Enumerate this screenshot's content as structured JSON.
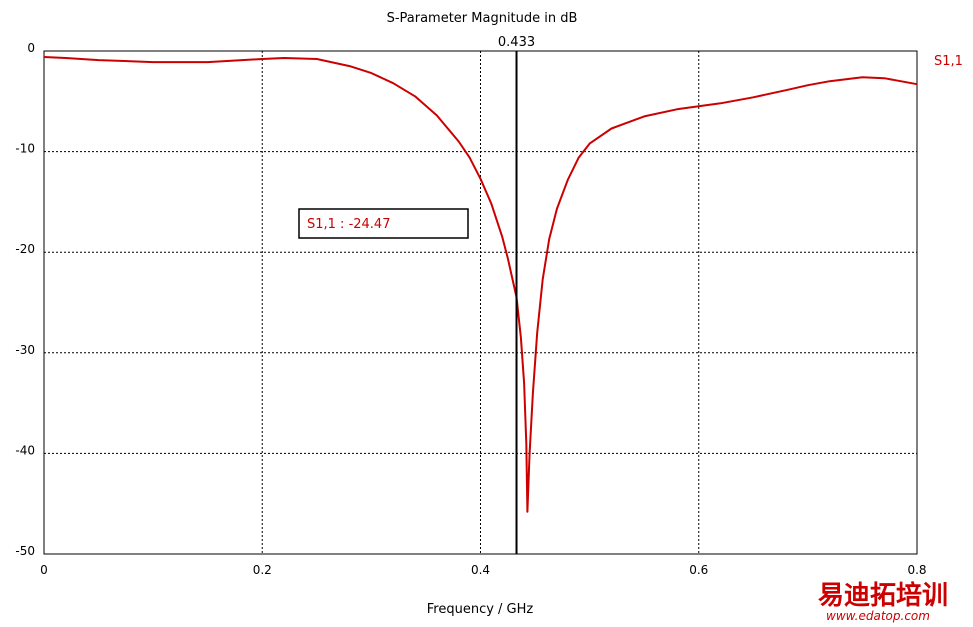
{
  "chart_data": {
    "type": "line",
    "title": "S-Parameter Magnitude in dB",
    "xlabel": "Frequency / GHz",
    "ylabel": "",
    "xlim": [
      0,
      0.8
    ],
    "ylim": [
      -50,
      0
    ],
    "x_ticks": [
      0,
      0.2,
      0.4,
      0.6,
      0.8
    ],
    "x_tick_labels": [
      "0",
      "0.2",
      "0.4",
      "0.6",
      "0.8"
    ],
    "y_ticks": [
      0,
      -10,
      -20,
      -30,
      -40,
      -50
    ],
    "y_tick_labels": [
      "0",
      "-10",
      "-20",
      "-30",
      "-40",
      "-50"
    ],
    "grid": true,
    "legend": {
      "placement": "right-top"
    },
    "series": [
      {
        "name": "S1,1",
        "color": "#cc0000",
        "x": [
          0,
          0.02,
          0.05,
          0.1,
          0.15,
          0.2,
          0.22,
          0.25,
          0.28,
          0.3,
          0.32,
          0.34,
          0.36,
          0.38,
          0.39,
          0.4,
          0.41,
          0.42,
          0.425,
          0.43,
          0.433,
          0.437,
          0.44,
          0.442,
          0.443,
          0.445,
          0.448,
          0.452,
          0.457,
          0.463,
          0.47,
          0.48,
          0.49,
          0.5,
          0.52,
          0.55,
          0.58,
          0.6,
          0.62,
          0.65,
          0.68,
          0.7,
          0.72,
          0.75,
          0.77,
          0.78,
          0.8
        ],
        "y": [
          -0.6,
          -0.7,
          -0.9,
          -1.1,
          -1.1,
          -0.8,
          -0.7,
          -0.8,
          -1.5,
          -2.2,
          -3.2,
          -4.5,
          -6.4,
          -9.0,
          -10.6,
          -12.7,
          -15.2,
          -18.5,
          -20.6,
          -23.0,
          -24.47,
          -28.5,
          -33.0,
          -39.0,
          -45.8,
          -40.0,
          -34.0,
          -28.0,
          -22.7,
          -18.7,
          -15.7,
          -12.8,
          -10.6,
          -9.2,
          -7.7,
          -6.5,
          -5.8,
          -5.5,
          -5.2,
          -4.6,
          -3.9,
          -3.4,
          -3.0,
          -2.6,
          -2.7,
          -2.9,
          -3.3
        ]
      }
    ],
    "marker": {
      "x": 0.433,
      "label": "0.433"
    },
    "annotation": {
      "text": "S1,1 : -24.47",
      "x": 0.433,
      "y": -24.47,
      "color": "#cc0000"
    }
  },
  "watermark": {
    "main": "易迪拓培训",
    "sub": "www.edatop.com",
    "color": "#cc0000"
  }
}
